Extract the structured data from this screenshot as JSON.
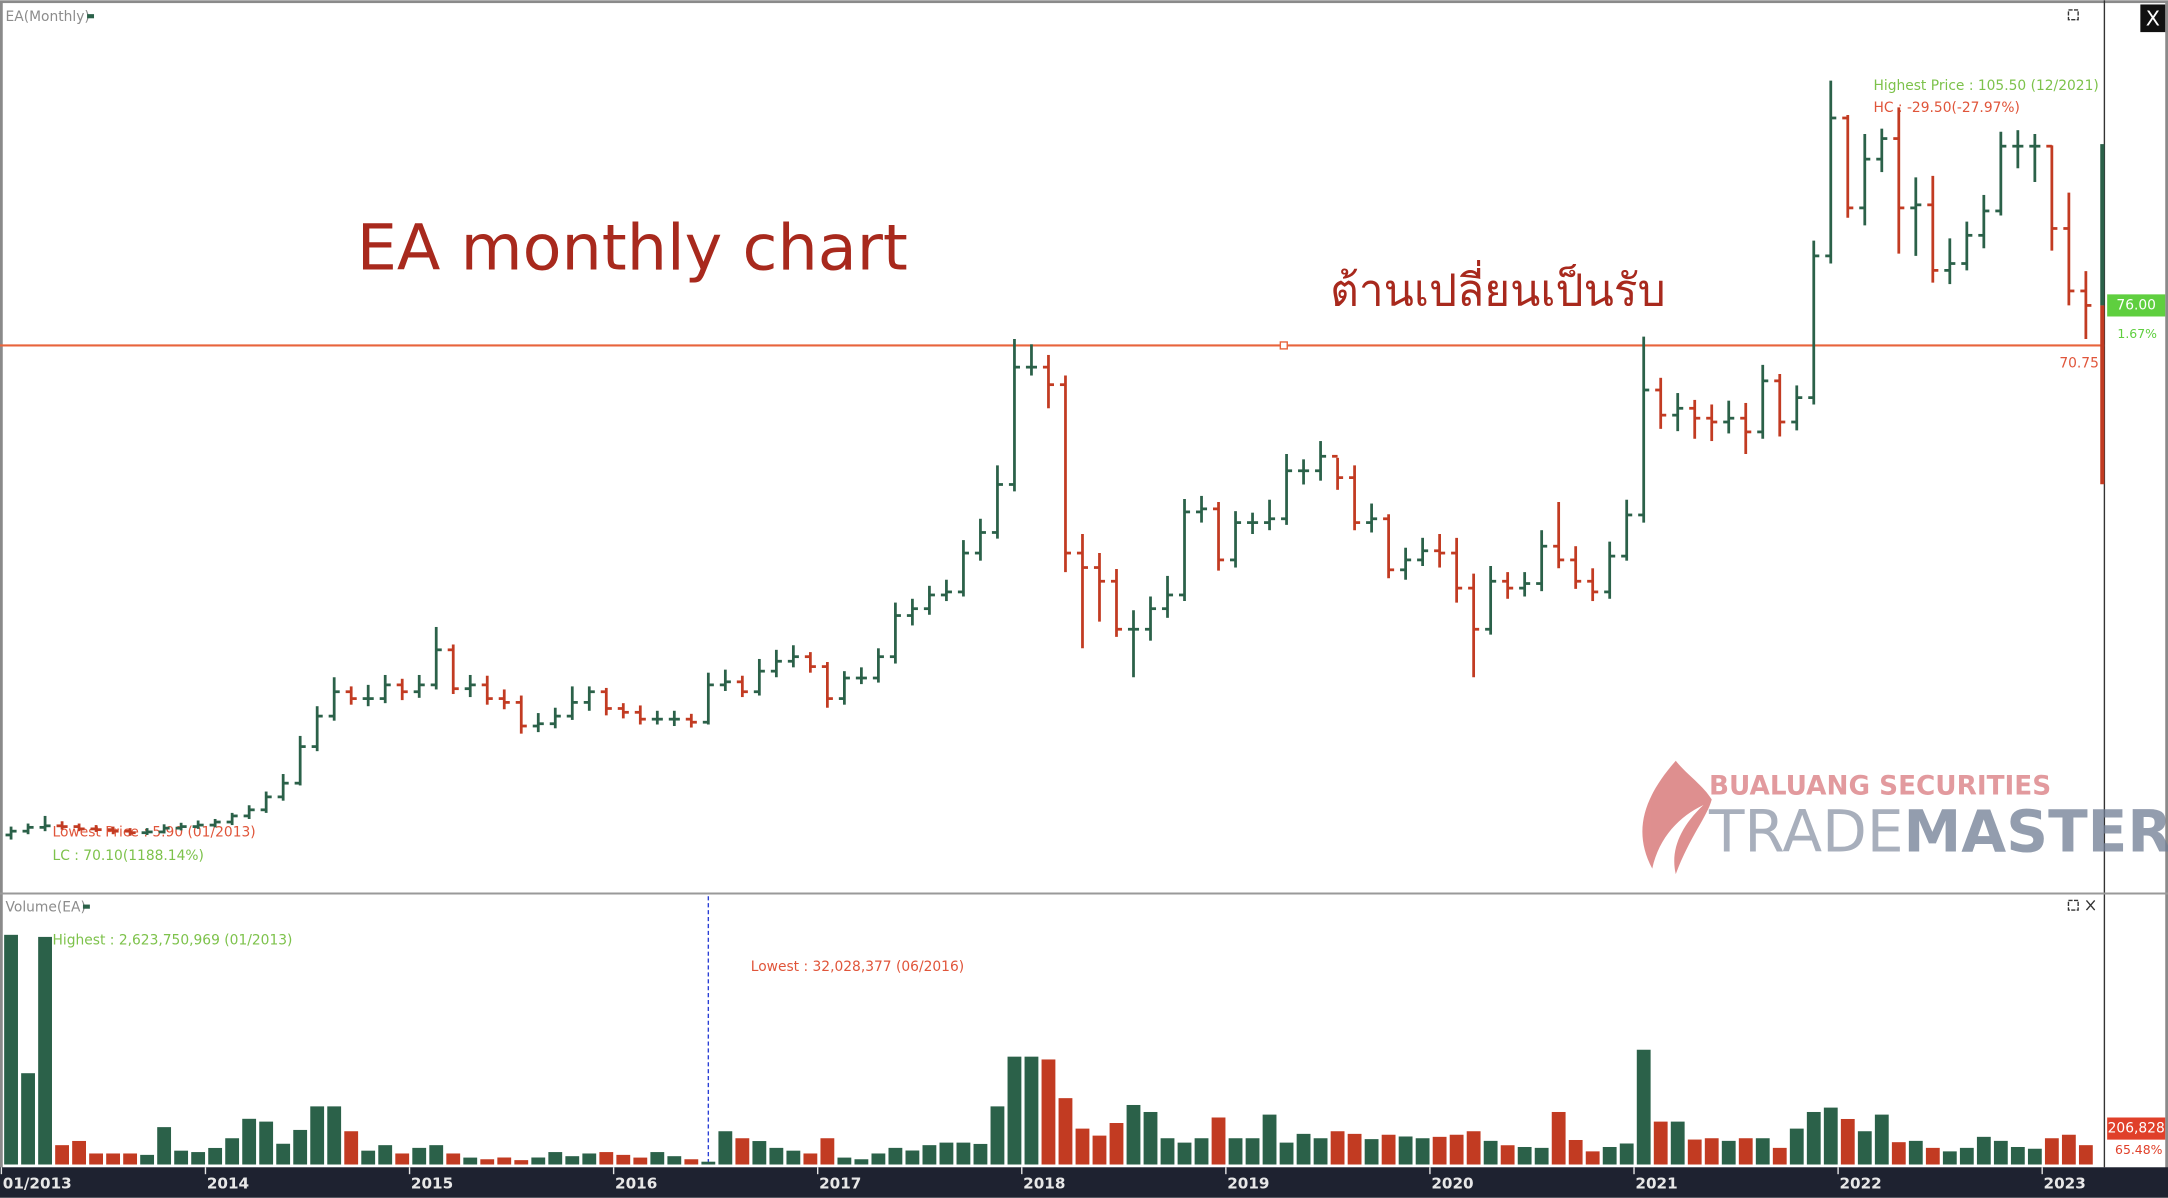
{
  "chart_data": {
    "type": "ohlc",
    "title": "EA monthly chart",
    "subtitle": "ต้านเปลี่ยนเป็นรับ",
    "pane_label": "EA(Monthly)",
    "volume_label": "Volume(EA)",
    "categories": [
      "01/2013",
      null,
      null,
      null,
      null,
      null,
      null,
      null,
      null,
      null,
      null,
      null,
      "2014",
      null,
      null,
      null,
      null,
      null,
      null,
      null,
      null,
      null,
      null,
      null,
      "2015",
      null,
      null,
      null,
      null,
      null,
      null,
      null,
      null,
      null,
      null,
      null,
      "2016",
      null,
      null,
      null,
      null,
      null,
      null,
      null,
      null,
      null,
      null,
      null,
      "2017",
      null,
      null,
      null,
      null,
      null,
      null,
      null,
      null,
      null,
      null,
      null,
      "2018",
      null,
      null,
      null,
      null,
      null,
      null,
      null,
      null,
      null,
      null,
      null,
      "2019",
      null,
      null,
      null,
      null,
      null,
      null,
      null,
      null,
      null,
      null,
      null,
      "2020",
      null,
      null,
      null,
      null,
      null,
      null,
      null,
      null,
      null,
      null,
      null,
      "2021",
      null,
      null,
      null,
      null,
      null,
      null,
      null,
      null,
      null,
      null,
      null,
      "2022",
      null,
      null,
      null,
      null,
      null,
      null,
      null,
      null,
      null,
      null,
      null,
      "2023",
      null,
      null
    ],
    "open": [
      6.5,
      7.0,
      7.5,
      7.7,
      7.6,
      7.3,
      7.2,
      7.0,
      6.8,
      6.9,
      7.4,
      7.6,
      7.8,
      8.2,
      9.0,
      9.8,
      11.5,
      13.3,
      18.1,
      22.1,
      25.3,
      24.4,
      24.4,
      26.2,
      25.3,
      26.2,
      30.8,
      25.7,
      26.2,
      24.4,
      23.9,
      20.8,
      21.1,
      22.1,
      23.9,
      25.3,
      23.1,
      22.6,
      21.7,
      21.7,
      21.7,
      21.3,
      26.2,
      26.6,
      25.3,
      28.0,
      29.3,
      29.9,
      28.6,
      24.4,
      27.1,
      27.1,
      29.9,
      35.3,
      36.2,
      38.0,
      38.4,
      43.5,
      46.2,
      52.5,
      67.9,
      67.9,
      65.6,
      43.5,
      41.6,
      39.8,
      33.5,
      33.5,
      36.2,
      38.0,
      48.9,
      49.3,
      42.6,
      47.5,
      47.5,
      48.0,
      54.3,
      54.3,
      56.2,
      53.4,
      47.5,
      48.0,
      41.3,
      42.6,
      43.8,
      43.5,
      38.9,
      33.5,
      39.8,
      38.9,
      39.5,
      44.4,
      42.6,
      39.8,
      38.4,
      43.1,
      48.5,
      64.9,
      61.6,
      62.5,
      61.2,
      60.7,
      61.2,
      59.4,
      66.1,
      60.7,
      63.9,
      82.5,
      100.6,
      88.8,
      95.2,
      97.9,
      88.8,
      89.2,
      80.6,
      81.5,
      85.2,
      88.4,
      96.9,
      96.9,
      96.9,
      86.1,
      77.9
    ],
    "high": [
      7.6,
      8.0,
      9.0,
      8.3,
      8.0,
      7.8,
      7.6,
      7.4,
      7.4,
      7.9,
      8.1,
      8.4,
      8.6,
      9.4,
      10.4,
      12.2,
      14.5,
      19.5,
      23.4,
      27.2,
      26.0,
      26.2,
      27.5,
      27.0,
      27.5,
      33.8,
      31.5,
      27.5,
      27.4,
      25.6,
      24.8,
      22.5,
      23.2,
      26.0,
      26.0,
      25.8,
      23.8,
      23.5,
      22.8,
      22.8,
      22.4,
      27.8,
      28.2,
      27.4,
      29.6,
      30.8,
      31.4,
      30.5,
      29.2,
      28.0,
      28.5,
      31.0,
      37.0,
      37.5,
      39.2,
      40.0,
      45.2,
      48.0,
      55.0,
      71.6,
      70.9,
      69.5,
      66.8,
      46.0,
      43.5,
      41.4,
      36.0,
      37.8,
      40.5,
      50.6,
      51.0,
      50.2,
      49.0,
      48.8,
      50.5,
      56.5,
      55.8,
      58.2,
      56.0,
      55.0,
      50.0,
      48.6,
      44.2,
      45.5,
      46.0,
      45.5,
      40.8,
      41.8,
      41.0,
      41.0,
      46.5,
      50.2,
      44.4,
      41.5,
      45.0,
      50.5,
      71.9,
      66.5,
      64.5,
      63.6,
      63.0,
      63.5,
      63.2,
      68.2,
      67.0,
      65.5,
      84.5,
      105.5,
      101.0,
      98.5,
      99.2,
      102.0,
      92.8,
      93.0,
      84.8,
      87.0,
      90.5,
      98.8,
      99.0,
      98.5,
      97.0,
      90.8,
      80.5
    ],
    "low": [
      5.9,
      6.6,
      7.0,
      7.2,
      7.0,
      6.9,
      6.6,
      6.4,
      6.5,
      6.7,
      7.1,
      7.3,
      7.5,
      7.8,
      8.6,
      9.4,
      11.0,
      13.0,
      17.5,
      21.5,
      23.6,
      23.4,
      23.8,
      24.2,
      24.5,
      25.6,
      25.0,
      24.6,
      23.6,
      23.0,
      19.8,
      20.0,
      20.5,
      21.6,
      22.8,
      22.2,
      21.8,
      21.0,
      21.0,
      20.8,
      20.6,
      21.0,
      25.4,
      24.6,
      24.8,
      27.2,
      28.5,
      27.8,
      23.2,
      23.6,
      26.3,
      26.5,
      29.0,
      34.0,
      35.4,
      37.2,
      37.8,
      42.5,
      45.4,
      51.6,
      66.8,
      62.5,
      41.0,
      31.0,
      34.5,
      32.5,
      27.2,
      32.0,
      35.0,
      37.2,
      47.5,
      41.2,
      41.6,
      46.0,
      46.5,
      47.2,
      52.5,
      53.0,
      51.8,
      46.5,
      46.2,
      40.2,
      40.0,
      41.8,
      41.6,
      37.0,
      27.2,
      32.8,
      37.5,
      37.8,
      38.5,
      41.5,
      38.8,
      37.2,
      37.5,
      42.5,
      47.5,
      59.8,
      59.5,
      58.5,
      58.2,
      59.2,
      56.5,
      58.5,
      58.8,
      59.6,
      63.0,
      81.5,
      87.5,
      86.5,
      93.5,
      82.8,
      82.5,
      79.0,
      78.8,
      80.6,
      83.5,
      87.8,
      94.0,
      92.2,
      83.2,
      76.0,
      71.6
    ],
    "close": [
      7.0,
      7.5,
      7.7,
      7.6,
      7.3,
      7.2,
      7.0,
      6.8,
      6.9,
      7.4,
      7.6,
      7.8,
      8.2,
      9.0,
      9.8,
      11.5,
      13.3,
      18.1,
      22.1,
      25.3,
      24.4,
      24.4,
      26.2,
      25.3,
      26.2,
      30.8,
      25.7,
      26.2,
      24.4,
      23.9,
      20.8,
      21.1,
      22.1,
      23.9,
      25.3,
      23.1,
      22.6,
      21.7,
      21.7,
      21.7,
      21.3,
      26.2,
      26.6,
      25.3,
      28.0,
      29.3,
      29.9,
      28.6,
      24.4,
      27.1,
      27.1,
      29.9,
      35.3,
      36.2,
      38.0,
      38.4,
      43.5,
      46.2,
      52.5,
      67.9,
      67.9,
      65.6,
      43.5,
      41.6,
      39.8,
      33.5,
      33.5,
      36.2,
      38.0,
      48.9,
      49.3,
      42.6,
      47.5,
      47.5,
      48.0,
      54.3,
      54.3,
      56.2,
      53.4,
      47.5,
      48.0,
      41.3,
      42.6,
      43.8,
      43.5,
      38.9,
      33.5,
      39.8,
      38.9,
      39.5,
      44.4,
      42.6,
      39.8,
      38.4,
      43.1,
      48.5,
      64.9,
      61.6,
      62.5,
      61.2,
      60.7,
      61.2,
      59.4,
      66.1,
      60.7,
      63.9,
      82.5,
      100.6,
      88.8,
      95.2,
      97.9,
      88.8,
      89.2,
      80.6,
      81.5,
      85.2,
      88.4,
      96.9,
      96.9,
      96.9,
      86.1,
      77.9,
      76.0
    ],
    "volume": [
      2623750969,
      1043000000,
      2600000000,
      221000000,
      269000000,
      126000000,
      126000000,
      126000000,
      110000000,
      427000000,
      158000000,
      142000000,
      189000000,
      300000000,
      522000000,
      490000000,
      237000000,
      395000000,
      664000000,
      664000000,
      380000000,
      158000000,
      221000000,
      126000000,
      190000000,
      221000000,
      126000000,
      79000000,
      60000000,
      80000000,
      50000000,
      80000000,
      142000000,
      95000000,
      126000000,
      142000000,
      110000000,
      79000000,
      142000000,
      95000000,
      60000000,
      32028377,
      380000000,
      300000000,
      268000000,
      190000000,
      158000000,
      126000000,
      300000000,
      79000000,
      60000000,
      126000000,
      190000000,
      160000000,
      221000000,
      250000000,
      250000000,
      235000000,
      664000000,
      1232000000,
      1232000000,
      1200000000,
      758000000,
      410000000,
      330000000,
      474000000,
      680000000,
      600000000,
      300000000,
      250000000,
      300000000,
      537000000,
      300000000,
      300000000,
      570000000,
      250000000,
      350000000,
      300000000,
      380000000,
      350000000,
      290000000,
      340000000,
      320000000,
      300000000,
      316000000,
      340000000,
      380000000,
      270000000,
      220000000,
      200000000,
      190000000,
      600000000,
      280000000,
      150000000,
      200000000,
      240000000,
      1311000000,
      490000000,
      490000000,
      285000000,
      300000000,
      270000000,
      300000000,
      300000000,
      190000000,
      410000000,
      600000000,
      650000000,
      520000000,
      380000000,
      570000000,
      255000000,
      270000000,
      190000000,
      150000000,
      190000000,
      316000000,
      270000000,
      200000000,
      180000000,
      300000000,
      340000000,
      221000000
    ],
    "up_color": "#2b6149",
    "down_color": "#c23b22",
    "ylim": [
      -1.0,
      115.5
    ],
    "volume_ylim": [
      0,
      3080000000
    ],
    "hline": 70.75,
    "hline_color": "#e8643c",
    "last_price": {
      "value": 76.0,
      "label": "76.00"
    },
    "last_change": "1.67%",
    "last_volume": "206,828",
    "last_volume_change": "65.48%",
    "highest_text": "Highest Price : 105.50 (12/2021)",
    "hc_text": "HC : -29.50(-27.97%)",
    "lowest_text": "Lowest Price : 5.90 (01/2013)",
    "lc_text": "LC : 70.10(1188.14%)",
    "volume_highest_text": "Highest : 2,623,750,969 (01/2013)",
    "volume_lowest_text": "Lowest : 32,028,377 (06/2016)",
    "watermark": {
      "company": "BUALUANG SECURITIES",
      "brand_a": "TRADE",
      "brand_b": "MASTER"
    },
    "close_button": "X"
  }
}
